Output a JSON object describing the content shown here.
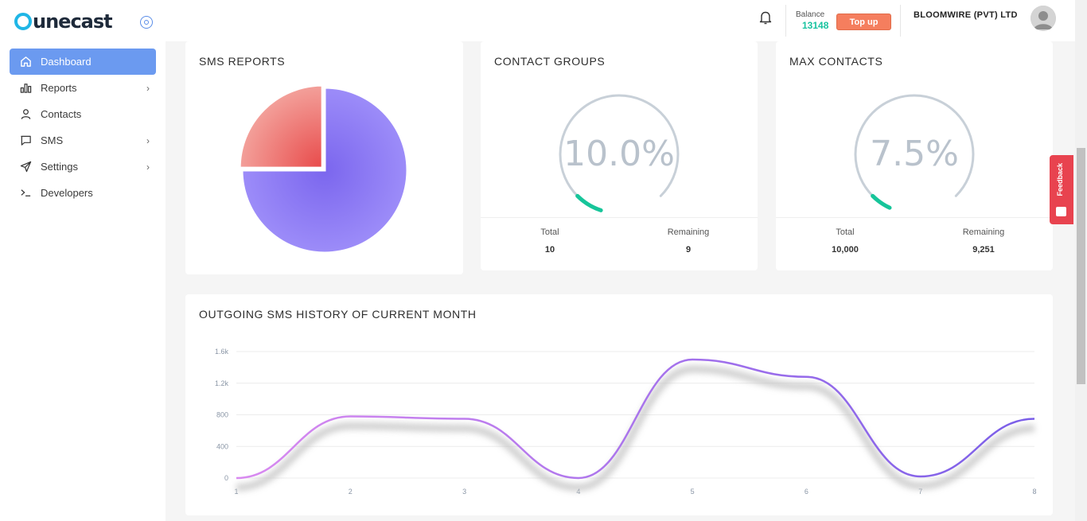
{
  "app": {
    "logo_text": "unecast"
  },
  "sidebar": {
    "items": [
      {
        "label": "Dashboard",
        "icon": "home-icon",
        "active": true,
        "chevron": false
      },
      {
        "label": "Reports",
        "icon": "bar-chart-icon",
        "active": false,
        "chevron": true
      },
      {
        "label": "Contacts",
        "icon": "user-icon",
        "active": false,
        "chevron": false
      },
      {
        "label": "SMS",
        "icon": "message-icon",
        "active": false,
        "chevron": true
      },
      {
        "label": "Settings",
        "icon": "send-icon",
        "active": false,
        "chevron": true
      },
      {
        "label": "Developers",
        "icon": "terminal-icon",
        "active": false,
        "chevron": false
      }
    ]
  },
  "header": {
    "balance_label": "Balance",
    "balance_value": "13148",
    "topup_label": "Top up",
    "company": "BLOOMWIRE (PVT) LTD"
  },
  "sms_reports": {
    "title": "SMS REPORTS"
  },
  "contact_groups": {
    "title": "CONTACT GROUPS",
    "percent": "10.0%",
    "percent_value": 10.0,
    "total_label": "Total",
    "total_value": "10",
    "remaining_label": "Remaining",
    "remaining_value": "9"
  },
  "max_contacts": {
    "title": "MAX CONTACTS",
    "percent": "7.5%",
    "percent_value": 7.5,
    "total_label": "Total",
    "total_value": "10,000",
    "remaining_label": "Remaining",
    "remaining_value": "9,251"
  },
  "feedback": {
    "label": "Feedback"
  },
  "chart_data": [
    {
      "type": "pie",
      "title": "SMS REPORTS",
      "slices": [
        {
          "value": 75,
          "color": "#8f7cf3"
        },
        {
          "value": 25,
          "color": "#ee7474"
        }
      ]
    },
    {
      "type": "line",
      "title": "OUTGOING SMS HISTORY OF CURRENT MONTH",
      "x": [
        1,
        2,
        3,
        4,
        5,
        6,
        7,
        8
      ],
      "y_ticks": [
        "0",
        "400",
        "800",
        "1.2k",
        "1.6k"
      ],
      "ylim": [
        0,
        1600
      ],
      "grid": true,
      "series": [
        {
          "values": [
            0,
            780,
            750,
            0,
            1500,
            1280,
            20,
            750
          ]
        }
      ]
    }
  ]
}
